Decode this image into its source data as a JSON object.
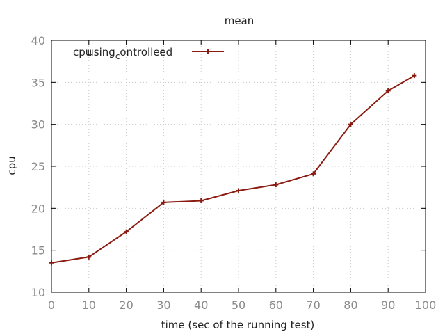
{
  "chart_data": {
    "type": "line",
    "title": "mean",
    "xlabel": "time (sec of the running test)",
    "ylabel": "cpu",
    "xlim": [
      0,
      100
    ],
    "ylim": [
      10,
      40
    ],
    "xticks": [
      0,
      10,
      20,
      30,
      40,
      50,
      60,
      70,
      80,
      90,
      100
    ],
    "yticks": [
      10,
      15,
      20,
      25,
      30,
      35,
      40
    ],
    "grid": true,
    "legend_position": "top-left",
    "series": [
      {
        "name": "cpu_using_controller_ed",
        "legend_parts": {
          "base": "cpu",
          "sub1": "using",
          "mid": "controller",
          "sub2": "ed"
        },
        "color": "#8b1a10",
        "marker": "plus",
        "x": [
          0,
          10,
          20,
          30,
          40,
          50,
          60,
          70,
          80,
          90,
          97
        ],
        "y": [
          13.5,
          14.2,
          17.2,
          20.7,
          20.9,
          22.1,
          22.8,
          24.1,
          30.0,
          34.0,
          35.8
        ]
      }
    ]
  }
}
